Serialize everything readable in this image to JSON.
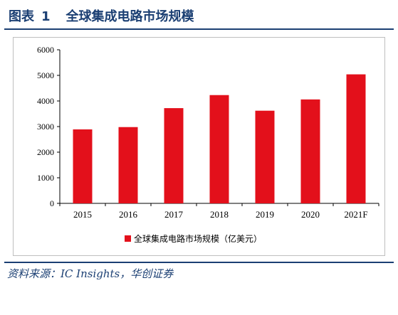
{
  "figure": {
    "label": "图表",
    "number": "1",
    "title": "全球集成电路市场规模"
  },
  "source": "资料来源：IC Insights，华创证券",
  "colors": {
    "bar": "#e3101b",
    "header": "#1b3f73"
  },
  "chart_data": {
    "type": "bar",
    "categories": [
      "2015",
      "2016",
      "2017",
      "2018",
      "2019",
      "2020",
      "2021F"
    ],
    "series": [
      {
        "name": "全球集成电路市场规模（亿美元）",
        "values": [
          2890,
          2980,
          3720,
          4230,
          3620,
          4060,
          5040
        ]
      }
    ],
    "ylim": [
      0,
      6000
    ],
    "yticks": [
      0,
      1000,
      2000,
      3000,
      4000,
      5000,
      6000
    ],
    "legend_position": "bottom-center",
    "grid": false
  }
}
